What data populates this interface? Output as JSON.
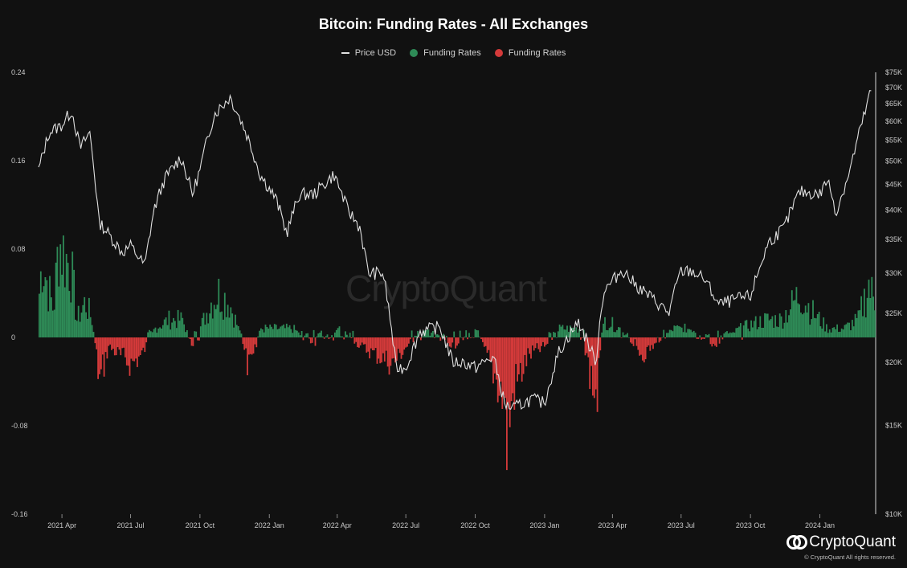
{
  "chart_data": {
    "type": "bar+line",
    "title": "Bitcoin: Funding Rates - All Exchanges",
    "legend": [
      {
        "label": "Price USD",
        "kind": "line",
        "color": "#e0e0e0"
      },
      {
        "label": "Funding Rates",
        "kind": "dot",
        "color": "#2e8b57"
      },
      {
        "label": "Funding Rates",
        "kind": "dot",
        "color": "#d43a3a"
      }
    ],
    "legend_position": "top-center",
    "grid": false,
    "x_ticks": [
      "2021 Apr",
      "2021 Jul",
      "2021 Oct",
      "2022 Jan",
      "2022 Apr",
      "2022 Jul",
      "2022 Oct",
      "2023 Jan",
      "2023 Apr",
      "2023 Jul",
      "2023 Oct",
      "2024 Jan"
    ],
    "x_range": [
      "2021-03-01",
      "2024-03-15"
    ],
    "y_left": {
      "label": "",
      "range": [
        -0.16,
        0.24
      ],
      "ticks": [
        "0.24",
        "0.16",
        "0.08",
        "0",
        "-0.08",
        "-0.16"
      ]
    },
    "y_right": {
      "label": "",
      "scale": "log",
      "range": [
        10000,
        75000
      ],
      "ticks": [
        "$75K",
        "$70K",
        "$65K",
        "$60K",
        "$55K",
        "$50K",
        "$45K",
        "$40K",
        "$35K",
        "$30K",
        "$25K",
        "$20K",
        "$15K",
        "$10K"
      ]
    },
    "price_series": {
      "name": "Price USD",
      "x": [
        "2021-03-01",
        "2021-03-15",
        "2021-04-01",
        "2021-04-14",
        "2021-04-25",
        "2021-05-08",
        "2021-05-20",
        "2021-06-01",
        "2021-06-20",
        "2021-07-01",
        "2021-07-20",
        "2021-08-01",
        "2021-08-15",
        "2021-09-06",
        "2021-09-21",
        "2021-10-01",
        "2021-10-20",
        "2021-11-10",
        "2021-12-01",
        "2021-12-20",
        "2022-01-10",
        "2022-01-24",
        "2022-02-10",
        "2022-03-01",
        "2022-03-28",
        "2022-04-15",
        "2022-05-01",
        "2022-05-12",
        "2022-06-01",
        "2022-06-18",
        "2022-07-01",
        "2022-07-20",
        "2022-08-15",
        "2022-09-01",
        "2022-09-15",
        "2022-10-01",
        "2022-10-25",
        "2022-11-09",
        "2022-11-20",
        "2022-12-15",
        "2023-01-01",
        "2023-01-20",
        "2023-02-15",
        "2023-03-10",
        "2023-03-20",
        "2023-04-14",
        "2023-05-01",
        "2023-06-15",
        "2023-06-30",
        "2023-07-15",
        "2023-08-01",
        "2023-08-20",
        "2023-09-15",
        "2023-10-01",
        "2023-10-25",
        "2023-11-15",
        "2023-12-05",
        "2024-01-01",
        "2024-01-11",
        "2024-01-23",
        "2024-02-10",
        "2024-02-28",
        "2024-03-10"
      ],
      "values": [
        48000,
        57000,
        59000,
        63000,
        53000,
        57000,
        38000,
        36000,
        33000,
        34000,
        31000,
        40000,
        46000,
        51000,
        43000,
        48000,
        62000,
        67000,
        57000,
        47000,
        42000,
        36000,
        43000,
        43000,
        47000,
        40000,
        37000,
        30000,
        30000,
        19500,
        19500,
        23000,
        23500,
        20000,
        20000,
        19500,
        20500,
        16500,
        16200,
        16900,
        16600,
        21000,
        24000,
        20000,
        27500,
        30500,
        28500,
        25000,
        30200,
        30300,
        29200,
        26000,
        26700,
        27000,
        34500,
        37000,
        43500,
        43000,
        46000,
        39500,
        48000,
        61000,
        70000
      ]
    },
    "funding_rate_series": {
      "name": "Funding Rates",
      "sample": [
        [
          "2021-03-01",
          0.05
        ],
        [
          "2021-03-05",
          0.09
        ],
        [
          "2021-03-12",
          0.06
        ],
        [
          "2021-03-20",
          0.03
        ],
        [
          "2021-03-27",
          0.11
        ],
        [
          "2021-04-05",
          0.09
        ],
        [
          "2021-04-12",
          0.08
        ],
        [
          "2021-04-20",
          0.02
        ],
        [
          "2021-05-01",
          0.04
        ],
        [
          "2021-05-10",
          0.02
        ],
        [
          "2021-05-20",
          -0.05
        ],
        [
          "2021-06-01",
          -0.01
        ],
        [
          "2021-06-15",
          -0.02
        ],
        [
          "2021-07-01",
          -0.03
        ],
        [
          "2021-07-15",
          -0.02
        ],
        [
          "2021-08-01",
          0.01
        ],
        [
          "2021-08-20",
          0.02
        ],
        [
          "2021-09-07",
          0.02
        ],
        [
          "2021-09-20",
          -0.01
        ],
        [
          "2021-10-05",
          0.02
        ],
        [
          "2021-10-15",
          0.04
        ],
        [
          "2021-10-25",
          0.05
        ],
        [
          "2021-11-08",
          0.04
        ],
        [
          "2021-11-20",
          0.01
        ],
        [
          "2021-12-05",
          -0.04
        ],
        [
          "2021-12-20",
          0.01
        ],
        [
          "2022-01-10",
          0.01
        ],
        [
          "2022-02-01",
          0.01
        ],
        [
          "2022-03-01",
          -0.01
        ],
        [
          "2022-04-01",
          0.01
        ],
        [
          "2022-05-01",
          -0.01
        ],
        [
          "2022-06-13",
          -0.03
        ],
        [
          "2022-07-01",
          -0.01
        ],
        [
          "2022-08-01",
          0.01
        ],
        [
          "2022-09-01",
          -0.01
        ],
        [
          "2022-10-01",
          0.01
        ],
        [
          "2022-11-08",
          -0.07
        ],
        [
          "2022-11-10",
          -0.12
        ],
        [
          "2022-11-20",
          -0.06
        ],
        [
          "2022-12-10",
          -0.02
        ],
        [
          "2023-01-01",
          -0.01
        ],
        [
          "2023-01-20",
          0.01
        ],
        [
          "2023-02-15",
          0.01
        ],
        [
          "2023-03-10",
          -0.07
        ],
        [
          "2023-03-20",
          0.02
        ],
        [
          "2023-04-10",
          0.01
        ],
        [
          "2023-05-10",
          -0.02
        ],
        [
          "2023-06-20",
          0.01
        ],
        [
          "2023-07-15",
          0.01
        ],
        [
          "2023-08-15",
          -0.01
        ],
        [
          "2023-09-15",
          0.01
        ],
        [
          "2023-10-20",
          0.02
        ],
        [
          "2023-11-10",
          0.02
        ],
        [
          "2023-12-05",
          0.05
        ],
        [
          "2023-12-20",
          0.03
        ],
        [
          "2024-01-10",
          0.01
        ],
        [
          "2024-02-01",
          0.01
        ],
        [
          "2024-02-20",
          0.02
        ],
        [
          "2024-03-05",
          0.06
        ],
        [
          "2024-03-12",
          0.04
        ]
      ]
    }
  },
  "watermark": "CryptoQuant",
  "brand": {
    "name": "CryptoQuant",
    "copyright": "© CryptoQuant All rights reserved."
  },
  "colors": {
    "background": "#111111",
    "positive": "#2e8b57",
    "negative": "#d43a3a",
    "price": "#e0e0e0"
  }
}
